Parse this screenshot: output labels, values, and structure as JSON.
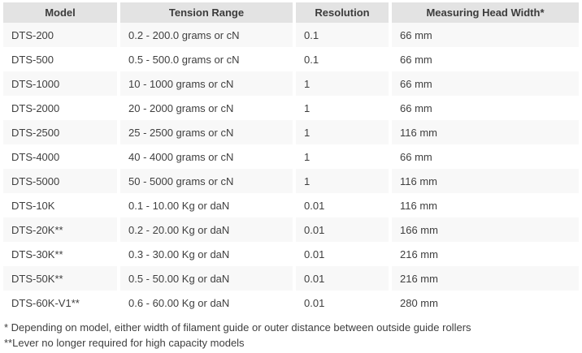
{
  "table": {
    "columns": [
      {
        "key": "model",
        "label": "Model"
      },
      {
        "key": "range",
        "label": "Tension Range"
      },
      {
        "key": "resolution",
        "label": "Resolution"
      },
      {
        "key": "head_width",
        "label": "Measuring Head Width*"
      }
    ],
    "rows": [
      {
        "model": "DTS-200",
        "range": "0.2 - 200.0 grams or cN",
        "resolution": "0.1",
        "head_width": "66 mm"
      },
      {
        "model": "DTS-500",
        "range": "0.5 - 500.0 grams or cN",
        "resolution": "0.1",
        "head_width": "66 mm"
      },
      {
        "model": "DTS-1000",
        "range": "10 - 1000 grams or cN",
        "resolution": "1",
        "head_width": "66 mm"
      },
      {
        "model": "DTS-2000",
        "range": "20 - 2000 grams or cN",
        "resolution": "1",
        "head_width": "66 mm"
      },
      {
        "model": "DTS-2500",
        "range": "25 - 2500 grams or cN",
        "resolution": "1",
        "head_width": "116 mm"
      },
      {
        "model": "DTS-4000",
        "range": "40 - 4000 grams or cN",
        "resolution": "1",
        "head_width": "66 mm"
      },
      {
        "model": "DTS-5000",
        "range": "50 - 5000 grams or cN",
        "resolution": "1",
        "head_width": "116 mm"
      },
      {
        "model": "DTS-10K",
        "range": "0.1 - 10.00 Kg or daN",
        "resolution": "0.01",
        "head_width": "116 mm"
      },
      {
        "model": "DTS-20K**",
        "range": "0.2 - 20.00 Kg or daN",
        "resolution": "0.01",
        "head_width": "166 mm"
      },
      {
        "model": "DTS-30K**",
        "range": "0.3 - 30.00 Kg or daN",
        "resolution": "0.01",
        "head_width": "216 mm"
      },
      {
        "model": "DTS-50K**",
        "range": "0.5 - 50.00 Kg or daN",
        "resolution": "0.01",
        "head_width": "216 mm"
      },
      {
        "model": "DTS-60K-V1**",
        "range": "0.6 - 60.00 Kg or daN",
        "resolution": "0.01",
        "head_width": "280 mm"
      }
    ],
    "footnotes": [
      "* Depending on model, either width of filament guide or outer distance between outside guide rollers",
      "**Lever no longer required for high capacity models"
    ]
  },
  "colors": {
    "header_bg": "#e3e3e3",
    "row_alt_bg": "#f8f8f8",
    "row_bg": "#ffffff",
    "text": "#3f3f3f"
  }
}
